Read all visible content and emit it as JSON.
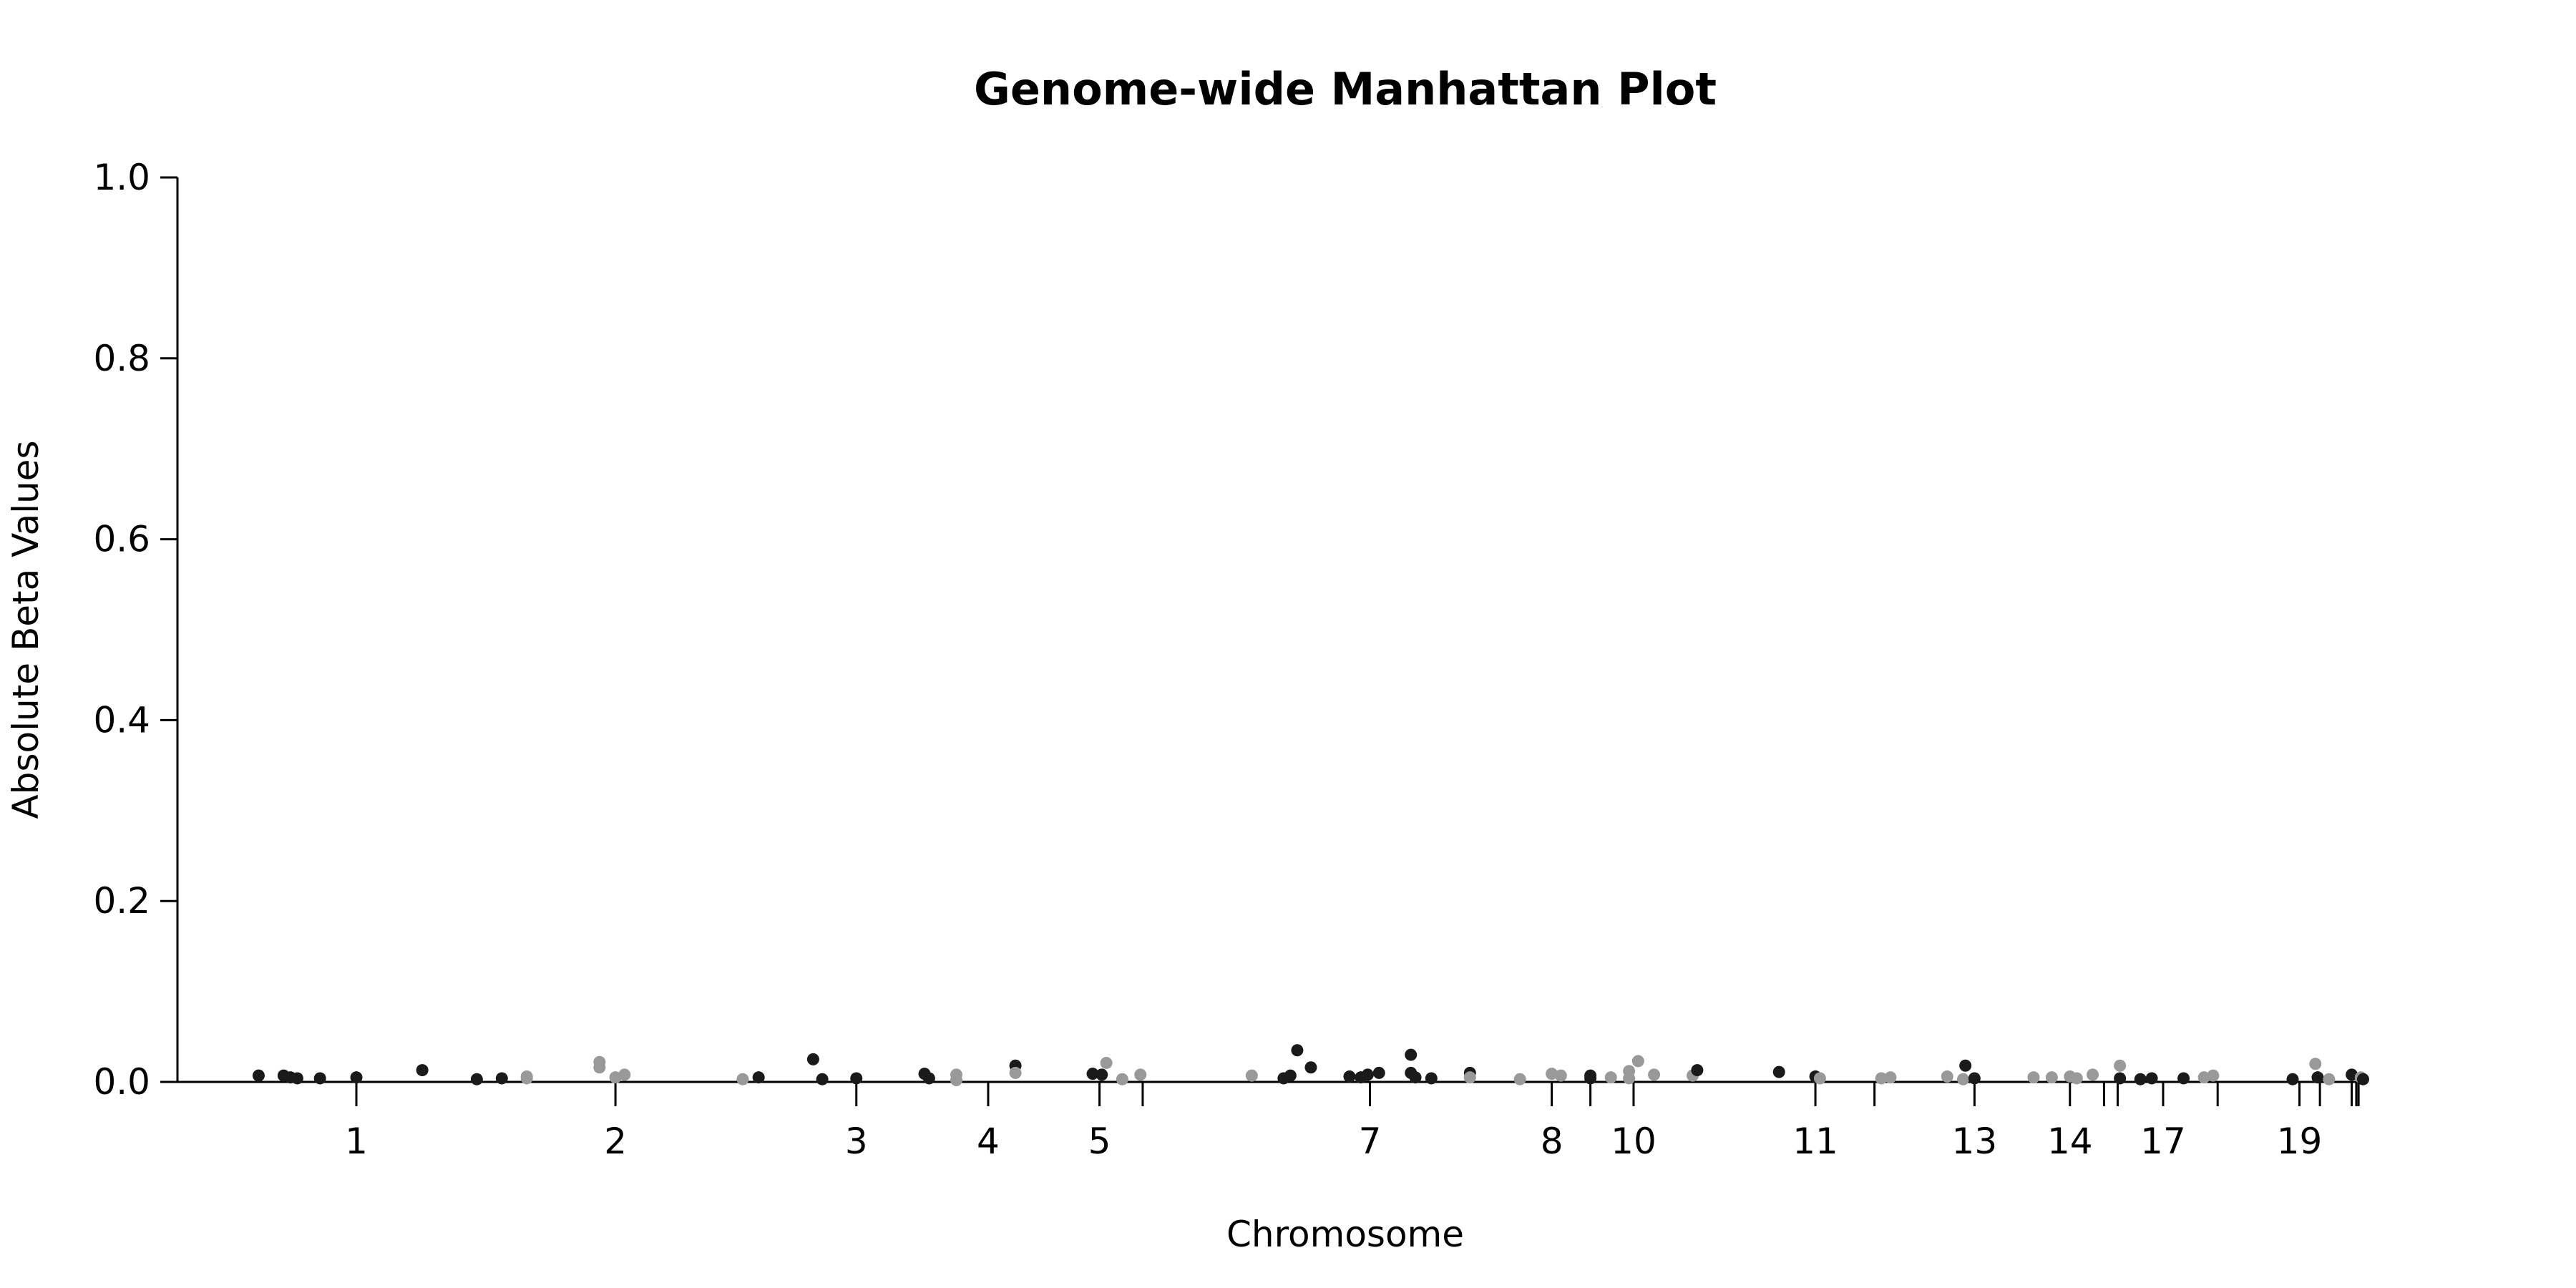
{
  "chart_data": {
    "type": "scatter",
    "title": "Genome-wide Manhattan Plot",
    "xlabel": "Chromosome",
    "ylabel": "Absolute Beta Values",
    "ylim": [
      0,
      1.0
    ],
    "y_ticks": [
      "0.0",
      "0.2",
      "0.4",
      "0.6",
      "0.8",
      "1.0"
    ],
    "grid": false,
    "legend": "none",
    "colors": {
      "odd_chromosome": "#1a1a1a",
      "even_chromosome": "#999999",
      "axis": "#000000"
    },
    "chromosome_ticks": [
      {
        "chr": 1,
        "label": "1",
        "pos": 0.074
      },
      {
        "chr": 2,
        "label": "2",
        "pos": 0.188
      },
      {
        "chr": 3,
        "label": "3",
        "pos": 0.294
      },
      {
        "chr": 4,
        "label": "4",
        "pos": 0.352
      },
      {
        "chr": 5,
        "label": "5",
        "pos": 0.401
      },
      {
        "chr": 6,
        "label": "",
        "pos": 0.42
      },
      {
        "chr": 7,
        "label": "7",
        "pos": 0.52
      },
      {
        "chr": 8,
        "label": "8",
        "pos": 0.6
      },
      {
        "chr": 9,
        "label": "",
        "pos": 0.617
      },
      {
        "chr": 10,
        "label": "10",
        "pos": 0.636
      },
      {
        "chr": 11,
        "label": "11",
        "pos": 0.716
      },
      {
        "chr": 12,
        "label": "",
        "pos": 0.742
      },
      {
        "chr": 13,
        "label": "13",
        "pos": 0.786
      },
      {
        "chr": 14,
        "label": "14",
        "pos": 0.828
      },
      {
        "chr": 15,
        "label": "",
        "pos": 0.843
      },
      {
        "chr": 16,
        "label": "",
        "pos": 0.849
      },
      {
        "chr": 17,
        "label": "17",
        "pos": 0.869
      },
      {
        "chr": 18,
        "label": "",
        "pos": 0.893
      },
      {
        "chr": 19,
        "label": "19",
        "pos": 0.929
      },
      {
        "chr": 20,
        "label": "",
        "pos": 0.938
      },
      {
        "chr": 21,
        "label": "",
        "pos": 0.952
      },
      {
        "chr": 22,
        "label": "",
        "pos": 0.954
      },
      {
        "chr": 23,
        "label": "",
        "pos": 0.955
      }
    ],
    "points": [
      {
        "x": 0.031,
        "y": 0.007,
        "chr": 1
      },
      {
        "x": 0.042,
        "y": 0.007,
        "chr": 1
      },
      {
        "x": 0.045,
        "y": 0.005,
        "chr": 1
      },
      {
        "x": 0.048,
        "y": 0.004,
        "chr": 1
      },
      {
        "x": 0.058,
        "y": 0.004,
        "chr": 1
      },
      {
        "x": 0.074,
        "y": 0.005,
        "chr": 1
      },
      {
        "x": 0.103,
        "y": 0.013,
        "chr": 1
      },
      {
        "x": 0.127,
        "y": 0.003,
        "chr": 1
      },
      {
        "x": 0.138,
        "y": 0.004,
        "chr": 1
      },
      {
        "x": 0.149,
        "y": 0.006,
        "chr": 2
      },
      {
        "x": 0.149,
        "y": 0.004,
        "chr": 2
      },
      {
        "x": 0.181,
        "y": 0.022,
        "chr": 2
      },
      {
        "x": 0.181,
        "y": 0.016,
        "chr": 2
      },
      {
        "x": 0.188,
        "y": 0.005,
        "chr": 2
      },
      {
        "x": 0.192,
        "y": 0.008,
        "chr": 2
      },
      {
        "x": 0.244,
        "y": 0.003,
        "chr": 2
      },
      {
        "x": 0.251,
        "y": 0.005,
        "chr": 3
      },
      {
        "x": 0.275,
        "y": 0.025,
        "chr": 3
      },
      {
        "x": 0.279,
        "y": 0.003,
        "chr": 3
      },
      {
        "x": 0.294,
        "y": 0.004,
        "chr": 3
      },
      {
        "x": 0.324,
        "y": 0.009,
        "chr": 3
      },
      {
        "x": 0.326,
        "y": 0.004,
        "chr": 3
      },
      {
        "x": 0.338,
        "y": 0.008,
        "chr": 4
      },
      {
        "x": 0.338,
        "y": 0.002,
        "chr": 4
      },
      {
        "x": 0.364,
        "y": 0.018,
        "chr": 5
      },
      {
        "x": 0.364,
        "y": 0.01,
        "chr": 4
      },
      {
        "x": 0.398,
        "y": 0.009,
        "chr": 5
      },
      {
        "x": 0.402,
        "y": 0.008,
        "chr": 5
      },
      {
        "x": 0.404,
        "y": 0.021,
        "chr": 6
      },
      {
        "x": 0.411,
        "y": 0.003,
        "chr": 6
      },
      {
        "x": 0.419,
        "y": 0.008,
        "chr": 6
      },
      {
        "x": 0.468,
        "y": 0.007,
        "chr": 6
      },
      {
        "x": 0.482,
        "y": 0.004,
        "chr": 7
      },
      {
        "x": 0.485,
        "y": 0.007,
        "chr": 7
      },
      {
        "x": 0.488,
        "y": 0.035,
        "chr": 7
      },
      {
        "x": 0.494,
        "y": 0.016,
        "chr": 7
      },
      {
        "x": 0.511,
        "y": 0.006,
        "chr": 7
      },
      {
        "x": 0.516,
        "y": 0.005,
        "chr": 7
      },
      {
        "x": 0.519,
        "y": 0.008,
        "chr": 7
      },
      {
        "x": 0.524,
        "y": 0.01,
        "chr": 7
      },
      {
        "x": 0.538,
        "y": 0.03,
        "chr": 7
      },
      {
        "x": 0.538,
        "y": 0.01,
        "chr": 7
      },
      {
        "x": 0.54,
        "y": 0.005,
        "chr": 7
      },
      {
        "x": 0.547,
        "y": 0.004,
        "chr": 7
      },
      {
        "x": 0.564,
        "y": 0.01,
        "chr": 7
      },
      {
        "x": 0.564,
        "y": 0.005,
        "chr": 8
      },
      {
        "x": 0.586,
        "y": 0.003,
        "chr": 8
      },
      {
        "x": 0.6,
        "y": 0.009,
        "chr": 8
      },
      {
        "x": 0.604,
        "y": 0.007,
        "chr": 8
      },
      {
        "x": 0.617,
        "y": 0.007,
        "chr": 9
      },
      {
        "x": 0.617,
        "y": 0.004,
        "chr": 9
      },
      {
        "x": 0.626,
        "y": 0.005,
        "chr": 10
      },
      {
        "x": 0.634,
        "y": 0.012,
        "chr": 10
      },
      {
        "x": 0.634,
        "y": 0.004,
        "chr": 10
      },
      {
        "x": 0.638,
        "y": 0.023,
        "chr": 10
      },
      {
        "x": 0.645,
        "y": 0.008,
        "chr": 10
      },
      {
        "x": 0.662,
        "y": 0.007,
        "chr": 10
      },
      {
        "x": 0.664,
        "y": 0.013,
        "chr": 11
      },
      {
        "x": 0.7,
        "y": 0.011,
        "chr": 11
      },
      {
        "x": 0.716,
        "y": 0.006,
        "chr": 11
      },
      {
        "x": 0.718,
        "y": 0.004,
        "chr": 12
      },
      {
        "x": 0.745,
        "y": 0.004,
        "chr": 12
      },
      {
        "x": 0.749,
        "y": 0.005,
        "chr": 12
      },
      {
        "x": 0.774,
        "y": 0.006,
        "chr": 12
      },
      {
        "x": 0.781,
        "y": 0.003,
        "chr": 12
      },
      {
        "x": 0.782,
        "y": 0.018,
        "chr": 13
      },
      {
        "x": 0.786,
        "y": 0.004,
        "chr": 13
      },
      {
        "x": 0.812,
        "y": 0.005,
        "chr": 14
      },
      {
        "x": 0.82,
        "y": 0.005,
        "chr": 14
      },
      {
        "x": 0.828,
        "y": 0.006,
        "chr": 14
      },
      {
        "x": 0.831,
        "y": 0.004,
        "chr": 14
      },
      {
        "x": 0.838,
        "y": 0.008,
        "chr": 14
      },
      {
        "x": 0.85,
        "y": 0.018,
        "chr": 16
      },
      {
        "x": 0.85,
        "y": 0.004,
        "chr": 17
      },
      {
        "x": 0.859,
        "y": 0.003,
        "chr": 17
      },
      {
        "x": 0.864,
        "y": 0.004,
        "chr": 17
      },
      {
        "x": 0.878,
        "y": 0.004,
        "chr": 17
      },
      {
        "x": 0.887,
        "y": 0.005,
        "chr": 18
      },
      {
        "x": 0.891,
        "y": 0.007,
        "chr": 18
      },
      {
        "x": 0.926,
        "y": 0.003,
        "chr": 19
      },
      {
        "x": 0.936,
        "y": 0.02,
        "chr": 20
      },
      {
        "x": 0.937,
        "y": 0.005,
        "chr": 19
      },
      {
        "x": 0.942,
        "y": 0.003,
        "chr": 20
      },
      {
        "x": 0.952,
        "y": 0.008,
        "chr": 21
      },
      {
        "x": 0.956,
        "y": 0.005,
        "chr": 22
      },
      {
        "x": 0.957,
        "y": 0.003,
        "chr": 23
      }
    ]
  }
}
